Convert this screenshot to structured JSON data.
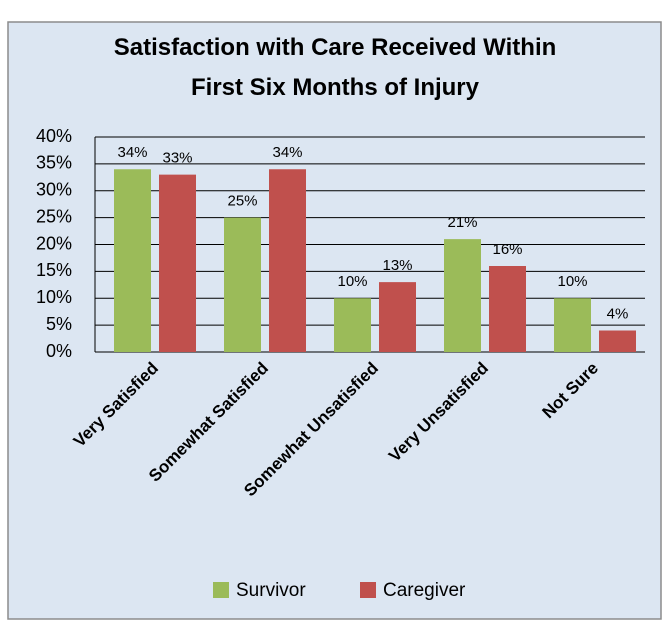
{
  "chart_data": {
    "type": "bar",
    "title": "Satisfaction with Care Received Within First Six Months of Injury",
    "categories": [
      "Very Satisfied",
      "Somewhat Satisfied",
      "Somewhat Unsatisfied",
      "Very Unsatisfied",
      "Not Sure"
    ],
    "series": [
      {
        "name": "Survivor",
        "color": "#9bbb59",
        "values": [
          34,
          25,
          10,
          21,
          10
        ],
        "value_labels": [
          "34%",
          "25%",
          "10%",
          "21%",
          "10%"
        ]
      },
      {
        "name": "Caregiver",
        "color": "#c0504d",
        "values": [
          33,
          34,
          13,
          16,
          4
        ],
        "value_labels": [
          "33%",
          "34%",
          "13%",
          "16%",
          "4%"
        ]
      }
    ],
    "ylim": [
      0,
      40
    ],
    "yticks": [
      {
        "value": 0,
        "label": "0%"
      },
      {
        "value": 5,
        "label": "5%"
      },
      {
        "value": 10,
        "label": "10%"
      },
      {
        "value": 15,
        "label": "15%"
      },
      {
        "value": 20,
        "label": "20%"
      },
      {
        "value": 25,
        "label": "25%"
      },
      {
        "value": 30,
        "label": "30%"
      },
      {
        "value": 35,
        "label": "35%"
      },
      {
        "value": 40,
        "label": "40%"
      }
    ],
    "grid": true,
    "legend": "bottom"
  }
}
